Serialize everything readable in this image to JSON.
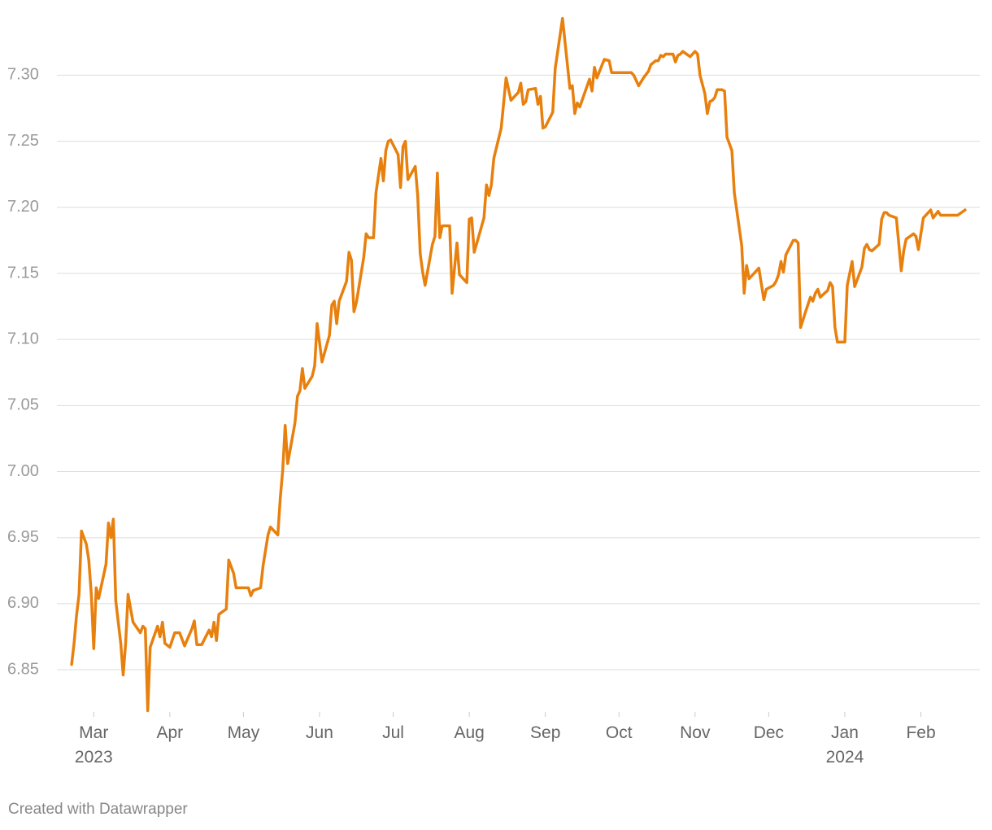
{
  "chart_data": {
    "type": "line",
    "footer": "Created with Datawrapper",
    "color": "#e8800e",
    "grid": true,
    "xlim": [
      -15,
      361
    ],
    "ylim": [
      6.818,
      7.344
    ],
    "yticks": [
      6.85,
      {
        "value": 6.9,
        "label": "6.90"
      },
      6.95,
      {
        "value": 7.0,
        "label": "7.00"
      },
      7.05,
      {
        "value": 7.1,
        "label": "7.10"
      },
      7.15,
      {
        "value": 7.2,
        "label": "7.20"
      },
      7.25,
      {
        "value": 7.3,
        "label": "7.30"
      }
    ],
    "xticks": [
      {
        "value": 0,
        "label": "Mar\n2023"
      },
      {
        "value": 31,
        "label": "Apr"
      },
      {
        "value": 61,
        "label": "May"
      },
      {
        "value": 92,
        "label": "Jun"
      },
      {
        "value": 122,
        "label": "Jul"
      },
      {
        "value": 153,
        "label": "Aug"
      },
      {
        "value": 184,
        "label": "Sep"
      },
      {
        "value": 214,
        "label": "Oct"
      },
      {
        "value": 245,
        "label": "Nov"
      },
      {
        "value": 275,
        "label": "Dec"
      },
      {
        "value": 306,
        "label": "Jan\n2024"
      },
      {
        "value": 337,
        "label": "Feb"
      }
    ],
    "x": [
      -9,
      -8,
      -7,
      -6,
      -5,
      -3,
      -2,
      -1,
      0,
      1,
      2,
      5,
      6,
      7,
      8,
      9,
      11,
      12,
      13,
      14,
      16,
      19,
      20,
      21,
      22,
      23,
      26,
      27,
      28,
      29,
      31,
      33,
      35,
      37,
      40,
      41,
      42,
      44,
      47,
      48,
      49,
      50,
      51,
      54,
      55,
      57,
      58,
      63,
      64,
      65,
      68,
      69,
      71,
      72,
      75,
      76,
      77,
      78,
      79,
      82,
      83,
      84,
      85,
      86,
      89,
      90,
      91,
      93,
      96,
      97,
      98,
      99,
      100,
      103,
      104,
      105,
      106,
      107,
      110,
      111,
      112,
      114,
      115,
      117,
      118,
      119,
      120,
      121,
      124,
      125,
      126,
      127,
      128,
      131,
      132,
      133,
      134,
      135,
      138,
      139,
      140,
      141,
      142,
      145,
      146,
      148,
      149,
      152,
      153,
      154,
      155,
      159,
      160,
      161,
      162,
      163,
      166,
      168,
      170,
      173,
      174,
      175,
      176,
      177,
      180,
      181,
      182,
      183,
      184,
      187,
      188,
      191,
      194,
      195,
      196,
      197,
      198,
      202,
      203,
      204,
      205,
      208,
      210,
      211,
      219,
      220,
      222,
      224,
      226,
      227,
      229,
      230,
      231,
      232,
      233,
      236,
      237,
      238,
      239,
      240,
      243,
      245,
      246,
      247,
      249,
      250,
      251,
      252,
      253,
      254,
      256,
      257,
      258,
      260,
      261,
      264,
      265,
      266,
      267,
      269,
      270,
      271,
      273,
      274,
      277,
      278,
      279,
      280,
      281,
      282,
      285,
      286,
      287,
      288,
      290,
      292,
      293,
      294,
      295,
      296,
      299,
      300,
      301,
      302,
      303,
      306,
      307,
      309,
      310,
      313,
      314,
      315,
      316,
      317,
      320,
      321,
      322,
      323,
      324,
      327,
      329,
      330,
      331,
      334,
      335,
      336,
      338,
      341,
      342,
      344,
      345,
      352,
      355
    ],
    "values": [
      6.854,
      6.87,
      6.891,
      6.907,
      6.955,
      6.945,
      6.933,
      6.907,
      6.866,
      6.912,
      6.904,
      6.93,
      6.961,
      6.95,
      6.964,
      6.902,
      6.87,
      6.846,
      6.87,
      6.907,
      6.886,
      6.878,
      6.883,
      6.881,
      6.819,
      6.867,
      6.883,
      6.875,
      6.886,
      6.87,
      6.867,
      6.878,
      6.878,
      6.868,
      6.881,
      6.887,
      6.869,
      6.869,
      6.88,
      6.875,
      6.886,
      6.872,
      6.892,
      6.896,
      6.933,
      6.923,
      6.912,
      6.912,
      6.906,
      6.91,
      6.912,
      6.929,
      6.952,
      6.958,
      6.952,
      6.98,
      7.001,
      7.035,
      7.006,
      7.037,
      7.057,
      7.061,
      7.078,
      7.063,
      7.072,
      7.08,
      7.112,
      7.083,
      7.103,
      7.126,
      7.129,
      7.112,
      7.129,
      7.144,
      7.166,
      7.16,
      7.121,
      7.128,
      7.162,
      7.18,
      7.177,
      7.177,
      7.211,
      7.237,
      7.22,
      7.243,
      7.25,
      7.251,
      7.24,
      7.215,
      7.246,
      7.25,
      7.221,
      7.231,
      7.209,
      7.165,
      7.151,
      7.141,
      7.172,
      7.178,
      7.226,
      7.177,
      7.186,
      7.186,
      7.135,
      7.173,
      7.149,
      7.143,
      7.191,
      7.192,
      7.166,
      7.192,
      7.217,
      7.209,
      7.217,
      7.237,
      7.26,
      7.298,
      7.281,
      7.287,
      7.294,
      7.278,
      7.28,
      7.289,
      7.29,
      7.278,
      7.284,
      7.26,
      7.261,
      7.272,
      7.305,
      7.343,
      7.29,
      7.292,
      7.271,
      7.279,
      7.276,
      7.297,
      7.288,
      7.306,
      7.298,
      7.312,
      7.311,
      7.302,
      7.302,
      7.3,
      7.292,
      7.298,
      7.303,
      7.308,
      7.311,
      7.311,
      7.315,
      7.314,
      7.316,
      7.316,
      7.31,
      7.315,
      7.316,
      7.318,
      7.314,
      7.318,
      7.316,
      7.3,
      7.286,
      7.271,
      7.28,
      7.281,
      7.283,
      7.289,
      7.289,
      7.288,
      7.253,
      7.243,
      7.211,
      7.171,
      7.135,
      7.156,
      7.146,
      7.15,
      7.152,
      7.154,
      7.13,
      7.138,
      7.141,
      7.144,
      7.149,
      7.159,
      7.151,
      7.164,
      7.175,
      7.175,
      7.173,
      7.109,
      7.121,
      7.132,
      7.129,
      7.135,
      7.138,
      7.132,
      7.137,
      7.143,
      7.14,
      7.109,
      7.098,
      7.098,
      7.141,
      7.159,
      7.14,
      7.155,
      7.169,
      7.172,
      7.168,
      7.167,
      7.172,
      7.191,
      7.196,
      7.196,
      7.194,
      7.192,
      7.152,
      7.167,
      7.176,
      7.18,
      7.178,
      7.168,
      7.192,
      7.198,
      7.192,
      7.197,
      7.194,
      7.194,
      7.198
    ]
  }
}
